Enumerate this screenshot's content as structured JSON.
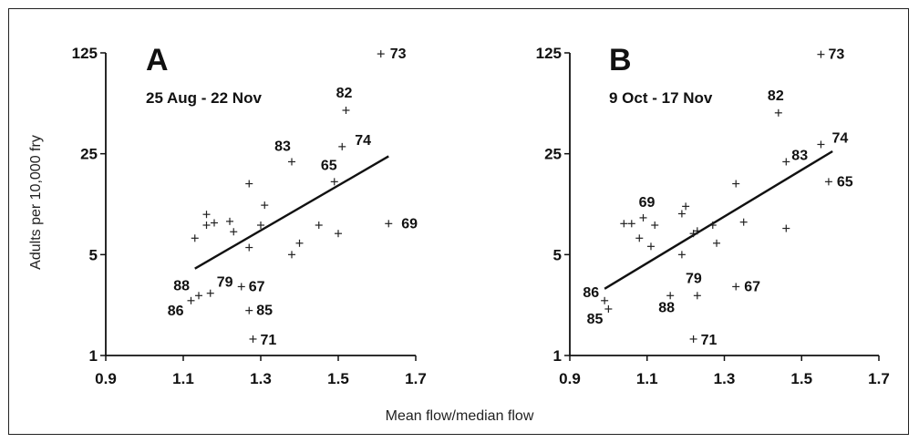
{
  "figure": {
    "ylabel": "Adults per 10,000 fry",
    "xlabel": "Mean flow/median flow"
  },
  "chart_data": [
    {
      "type": "scatter",
      "panel_letter": "A",
      "subtitle": "25 Aug - 22 Nov",
      "x_ticks": [
        "0.9",
        "1.1",
        "1.3",
        "1.5",
        "1.7"
      ],
      "y_ticks": [
        "1",
        "5",
        "25",
        "125"
      ],
      "xlim": [
        0.9,
        1.7
      ],
      "ylim": [
        1,
        125
      ],
      "y_scale": "log",
      "points": [
        {
          "x": 1.61,
          "y": 123,
          "label": "73"
        },
        {
          "x": 1.52,
          "y": 50,
          "label": "82"
        },
        {
          "x": 1.51,
          "y": 28,
          "label": "74"
        },
        {
          "x": 1.38,
          "y": 22,
          "label": "83"
        },
        {
          "x": 1.49,
          "y": 16,
          "label": "65"
        },
        {
          "x": 1.63,
          "y": 8.2,
          "label": "69"
        },
        {
          "x": 1.14,
          "y": 2.6,
          "label": "88"
        },
        {
          "x": 1.17,
          "y": 2.7,
          "label": "79"
        },
        {
          "x": 1.12,
          "y": 2.4,
          "label": "86"
        },
        {
          "x": 1.25,
          "y": 3.0,
          "label": "67"
        },
        {
          "x": 1.27,
          "y": 2.05,
          "label": "85"
        },
        {
          "x": 1.28,
          "y": 1.3,
          "label": "71"
        },
        {
          "x": 1.13,
          "y": 6.5
        },
        {
          "x": 1.16,
          "y": 9.5
        },
        {
          "x": 1.16,
          "y": 8.0
        },
        {
          "x": 1.18,
          "y": 8.3
        },
        {
          "x": 1.22,
          "y": 8.5
        },
        {
          "x": 1.23,
          "y": 7.2
        },
        {
          "x": 1.27,
          "y": 15.5
        },
        {
          "x": 1.27,
          "y": 5.6
        },
        {
          "x": 1.31,
          "y": 11
        },
        {
          "x": 1.3,
          "y": 8.0
        },
        {
          "x": 1.38,
          "y": 5.0
        },
        {
          "x": 1.4,
          "y": 6.0
        },
        {
          "x": 1.45,
          "y": 8.0
        },
        {
          "x": 1.5,
          "y": 7.0
        }
      ],
      "fit_line": [
        {
          "x": 1.13,
          "y": 4.0
        },
        {
          "x": 1.63,
          "y": 24
        }
      ]
    },
    {
      "type": "scatter",
      "panel_letter": "B",
      "subtitle": "9 Oct - 17 Nov",
      "x_ticks": [
        "0.9",
        "1.1",
        "1.3",
        "1.5",
        "1.7"
      ],
      "y_ticks": [
        "1",
        "5",
        "25",
        "125"
      ],
      "xlim": [
        0.9,
        1.7
      ],
      "ylim": [
        1,
        125
      ],
      "y_scale": "log",
      "points": [
        {
          "x": 1.55,
          "y": 122,
          "label": "73"
        },
        {
          "x": 1.44,
          "y": 48,
          "label": "82"
        },
        {
          "x": 1.55,
          "y": 29,
          "label": "74"
        },
        {
          "x": 1.46,
          "y": 22,
          "label": "83"
        },
        {
          "x": 1.57,
          "y": 16,
          "label": "65"
        },
        {
          "x": 1.09,
          "y": 9.0,
          "label": "69"
        },
        {
          "x": 0.99,
          "y": 2.4,
          "label": "86"
        },
        {
          "x": 1.0,
          "y": 2.1,
          "label": "85"
        },
        {
          "x": 1.16,
          "y": 2.6,
          "label": "88"
        },
        {
          "x": 1.23,
          "y": 2.6,
          "label": "79"
        },
        {
          "x": 1.33,
          "y": 3.0,
          "label": "67"
        },
        {
          "x": 1.22,
          "y": 1.3,
          "label": "71"
        },
        {
          "x": 1.04,
          "y": 8.2
        },
        {
          "x": 1.06,
          "y": 8.2
        },
        {
          "x": 1.08,
          "y": 6.5
        },
        {
          "x": 1.11,
          "y": 5.7
        },
        {
          "x": 1.12,
          "y": 8.0
        },
        {
          "x": 1.19,
          "y": 9.6
        },
        {
          "x": 1.2,
          "y": 10.8
        },
        {
          "x": 1.19,
          "y": 5.0
        },
        {
          "x": 1.22,
          "y": 7.0
        },
        {
          "x": 1.23,
          "y": 7.3
        },
        {
          "x": 1.27,
          "y": 8.0
        },
        {
          "x": 1.28,
          "y": 6.0
        },
        {
          "x": 1.33,
          "y": 15.5
        },
        {
          "x": 1.35,
          "y": 8.4
        },
        {
          "x": 1.46,
          "y": 7.6
        }
      ],
      "fit_line": [
        {
          "x": 0.99,
          "y": 2.9
        },
        {
          "x": 1.58,
          "y": 26
        }
      ]
    }
  ]
}
